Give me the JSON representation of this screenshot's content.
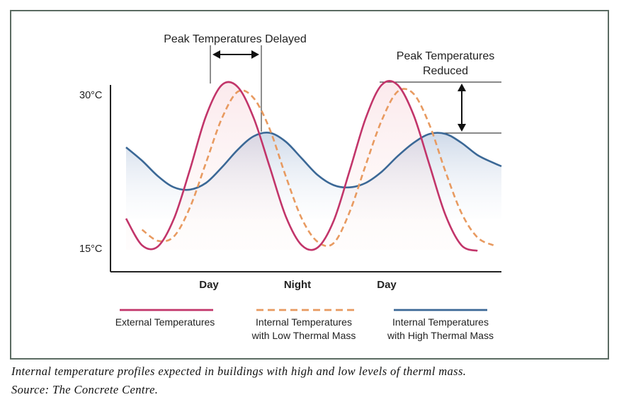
{
  "chart_data": {
    "type": "line",
    "title": "",
    "xlabel": "",
    "ylabel": "",
    "y_ticks": [
      "30°C",
      "15°C"
    ],
    "ylim": [
      14,
      32
    ],
    "x_labels": [
      "Day",
      "Night",
      "Day"
    ],
    "series": [
      {
        "name": "External Temperatures",
        "color": "#c2356a",
        "style": "solid",
        "x": [
          0,
          20,
          40,
          60,
          80,
          100,
          120,
          140,
          160,
          180,
          200,
          220,
          240,
          260,
          280,
          300,
          320,
          340,
          360,
          380,
          400,
          420,
          440,
          460,
          470
        ],
        "y": [
          18.0,
          15.6,
          15.5,
          18.0,
          22.4,
          27.2,
          30.0,
          29.8,
          27.0,
          22.6,
          18.2,
          15.6,
          15.4,
          17.8,
          22.3,
          27.0,
          30.0,
          30.0,
          27.3,
          22.8,
          18.3,
          15.6,
          15.1,
          null,
          null
        ]
      },
      {
        "name": "Internal Temperatures with Low Thermal Mass",
        "color": "#e89a60",
        "style": "dashed",
        "x": [
          20,
          40,
          60,
          80,
          100,
          120,
          140,
          160,
          180,
          200,
          220,
          240,
          260,
          280,
          300,
          320,
          340,
          360,
          380,
          400,
          420,
          440,
          460,
          470
        ],
        "y": [
          17.0,
          16.0,
          16.4,
          19.0,
          23.0,
          27.0,
          29.4,
          28.8,
          26.0,
          21.8,
          18.0,
          15.9,
          15.8,
          18.6,
          22.8,
          26.8,
          29.4,
          29.2,
          26.4,
          22.2,
          18.5,
          16.3,
          15.6,
          null
        ]
      },
      {
        "name": "Internal Temperatures with High Thermal Mass",
        "color": "#3b6896",
        "style": "solid",
        "x": [
          0,
          20,
          40,
          60,
          80,
          100,
          120,
          140,
          160,
          180,
          200,
          220,
          240,
          260,
          280,
          300,
          320,
          340,
          360,
          380,
          400,
          420,
          440,
          460,
          470
        ],
        "y": [
          24.4,
          23.2,
          21.8,
          20.8,
          20.6,
          21.2,
          22.6,
          24.2,
          25.4,
          25.7,
          24.9,
          23.4,
          21.9,
          21.0,
          20.8,
          21.2,
          22.2,
          23.6,
          24.8,
          25.6,
          25.6,
          24.8,
          23.7,
          23.0,
          22.7
        ]
      }
    ],
    "legend": {
      "position": "bottom",
      "lines": [
        [
          "External Temperatures"
        ],
        [
          "Internal Temperatures",
          "with Low Thermal Mass"
        ],
        [
          "Internal Temperatures",
          "with High Thermal Mass"
        ]
      ]
    },
    "annotations": {
      "delay": [
        "Peak Temperatures Delayed"
      ],
      "reduced": [
        "Peak Temperatures",
        "Reduced"
      ]
    },
    "grid": false
  },
  "caption": {
    "line1": "Internal temperature profiles expected in buildings with high and low levels of therml mass.",
    "line2": "Source: The Concrete Centre."
  }
}
